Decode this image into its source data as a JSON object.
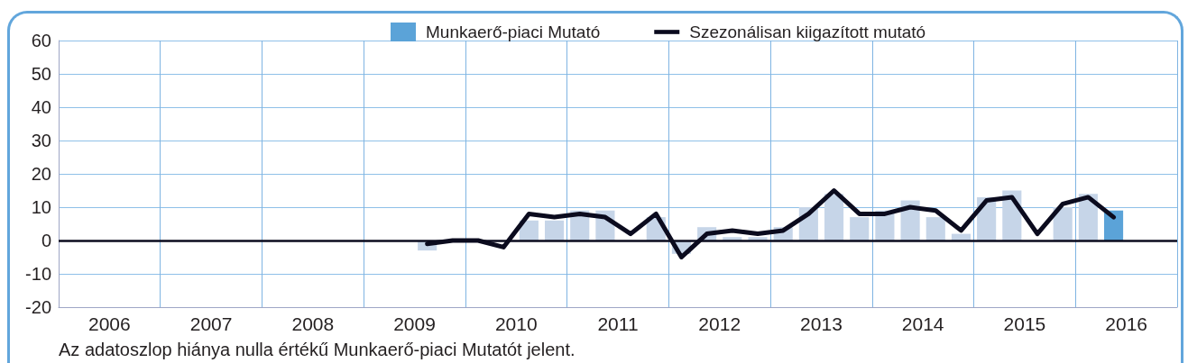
{
  "chart_data": {
    "type": "bar",
    "x": [
      2009.625,
      2009.875,
      2010.125,
      2010.375,
      2010.625,
      2010.875,
      2011.125,
      2011.375,
      2011.625,
      2011.875,
      2012.125,
      2012.375,
      2012.625,
      2012.875,
      2013.125,
      2013.375,
      2013.625,
      2013.875,
      2014.125,
      2014.375,
      2014.625,
      2014.875,
      2015.125,
      2015.375,
      2015.625,
      2015.875,
      2016.125,
      2016.375
    ],
    "series": [
      {
        "name": "Munkaerő-piaci Mutató",
        "color": "#5ba3d8",
        "colors": [
          "#c6d5e8",
          "#c6d5e8",
          "#c6d5e8",
          "#c6d5e8",
          "#c6d5e8",
          "#c6d5e8",
          "#c6d5e8",
          "#c6d5e8",
          "#c6d5e8",
          "#c6d5e8",
          "#c6d5e8",
          "#c6d5e8",
          "#c6d5e8",
          "#c6d5e8",
          "#c6d5e8",
          "#c6d5e8",
          "#c6d5e8",
          "#c6d5e8",
          "#c6d5e8",
          "#c6d5e8",
          "#c6d5e8",
          "#c6d5e8",
          "#c6d5e8",
          "#c6d5e8",
          "#c6d5e8",
          "#c6d5e8",
          "#c6d5e8",
          "#5ba3d8"
        ],
        "values": [
          -3,
          0,
          0,
          0,
          6,
          6,
          9,
          9,
          0,
          7,
          -4,
          4,
          1,
          1,
          4,
          10,
          14,
          7,
          9,
          12,
          7,
          2,
          13,
          15,
          0,
          10,
          14,
          9
        ]
      },
      {
        "name": "Szezonálisan kiigazított mutató",
        "type": "line",
        "color": "#0b0b1e",
        "values": [
          -1,
          0,
          0,
          -2,
          8,
          7,
          8,
          7,
          2,
          8,
          -5,
          2,
          3,
          2,
          3,
          8,
          15,
          8,
          8,
          10,
          9,
          3,
          12,
          13,
          2,
          11,
          13,
          7
        ]
      }
    ],
    "xlim": [
      2006,
      2017
    ],
    "xticks": [
      {
        "value": 2006,
        "label": null
      },
      {
        "value": 2006.5,
        "label": "2006"
      },
      {
        "value": 2007,
        "label": null
      },
      {
        "value": 2007.5,
        "label": "2007"
      },
      {
        "value": 2008,
        "label": null
      },
      {
        "value": 2008.5,
        "label": "2008"
      },
      {
        "value": 2009,
        "label": null
      },
      {
        "value": 2009.5,
        "label": "2009"
      },
      {
        "value": 2010,
        "label": null
      },
      {
        "value": 2010.5,
        "label": "2010"
      },
      {
        "value": 2011,
        "label": null
      },
      {
        "value": 2011.5,
        "label": "2011"
      },
      {
        "value": 2012,
        "label": null
      },
      {
        "value": 2012.5,
        "label": "2012"
      },
      {
        "value": 2013,
        "label": null
      },
      {
        "value": 2013.5,
        "label": "2013"
      },
      {
        "value": 2014,
        "label": null
      },
      {
        "value": 2014.5,
        "label": "2014"
      },
      {
        "value": 2015,
        "label": null
      },
      {
        "value": 2015.5,
        "label": "2015"
      },
      {
        "value": 2016,
        "label": null
      },
      {
        "value": 2016.5,
        "label": "2016"
      },
      {
        "value": 2017,
        "label": null
      }
    ],
    "ylim": [
      -20,
      60
    ],
    "yticks": [
      -20,
      -10,
      0,
      10,
      20,
      30,
      40,
      50,
      60
    ],
    "ref_lines": [
      {
        "axis": "y",
        "value": 0,
        "color": "#0b0b1e"
      }
    ],
    "grid": true,
    "legend": "top",
    "marker": "none",
    "line_style": "solid",
    "annotations": [
      "Az adatoszlop hiánya nulla értékű Munkaerő-piaci Mutatót jelent."
    ]
  }
}
